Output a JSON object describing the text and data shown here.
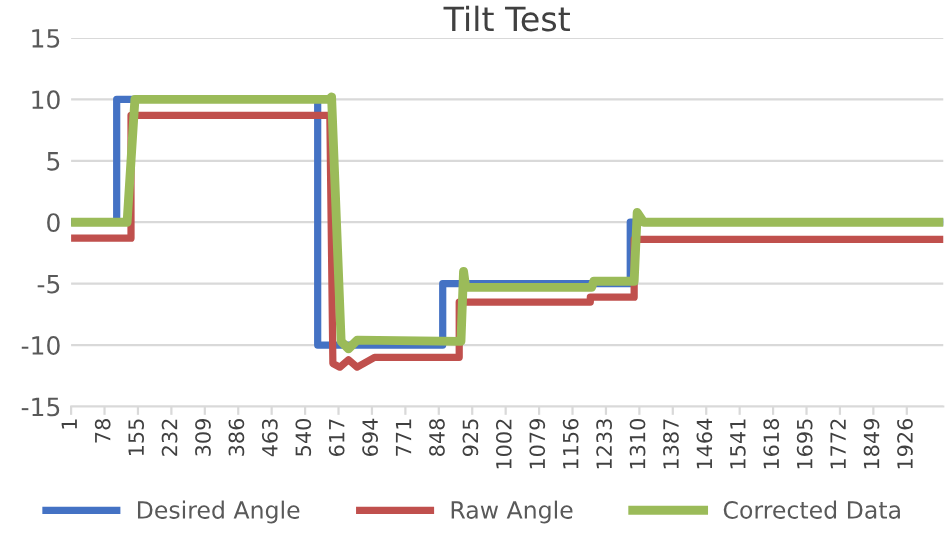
{
  "chart_data": {
    "type": "line",
    "title": "Tilt Test",
    "series": [
      {
        "name": "Desired Angle",
        "color": "#4472c4",
        "x": [
          1,
          106,
          106,
          569,
          569,
          857,
          857,
          1289,
          1289,
          2004
        ],
        "values": [
          0,
          0,
          10,
          10,
          -10,
          -10,
          -5,
          -5,
          0,
          0
        ]
      },
      {
        "name": "Raw Angle",
        "color": "#c0504d",
        "x": [
          1,
          139,
          139,
          597,
          604,
          620,
          640,
          660,
          700,
          895,
          895,
          1197,
          1197,
          1298,
          1298,
          2004
        ],
        "values": [
          -1.3,
          -1.3,
          8.7,
          8.7,
          -11.5,
          -11.8,
          -11.2,
          -11.8,
          -11,
          -11,
          -6.5,
          -6.5,
          -6.1,
          -6.1,
          -1.4,
          -1.4
        ]
      },
      {
        "name": "Corrected Data",
        "color": "#9bbb59",
        "x": [
          1,
          130,
          148,
          595,
          601,
          623,
          640,
          660,
          899,
          905,
          910,
          1200,
          1205,
          1298,
          1305,
          1320,
          2004
        ],
        "values": [
          0,
          0,
          10,
          10,
          10.2,
          -9.7,
          -10.3,
          -9.6,
          -9.7,
          -4,
          -5.3,
          -5.3,
          -4.8,
          -4.8,
          0.8,
          0,
          0
        ]
      }
    ],
    "xlim": [
      1,
      2010
    ],
    "xticks": [
      1,
      78,
      155,
      232,
      309,
      386,
      463,
      540,
      617,
      694,
      771,
      848,
      925,
      1002,
      1079,
      1156,
      1233,
      1310,
      1387,
      1464,
      1541,
      1618,
      1695,
      1772,
      1849,
      1926
    ],
    "ylim": [
      -15,
      15
    ],
    "yticks": [
      -15,
      -10,
      -5,
      0,
      5,
      10,
      15
    ],
    "grid": "y",
    "legend": "bottom",
    "marker": "none",
    "line_style": "solid"
  }
}
